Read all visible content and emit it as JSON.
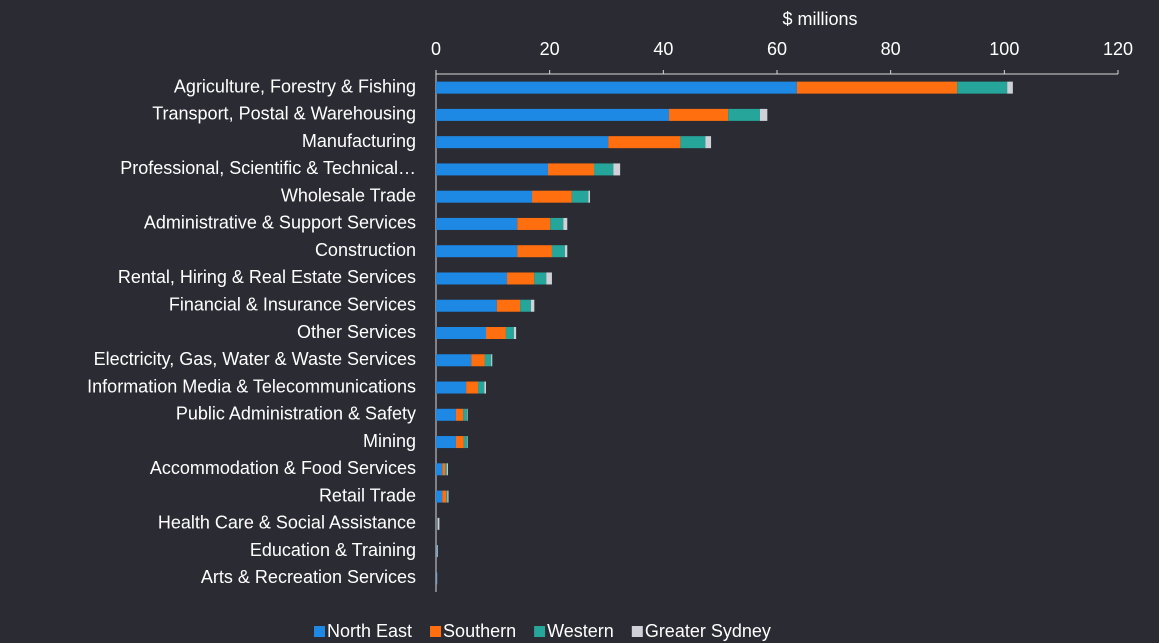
{
  "chart_data": {
    "type": "bar",
    "orientation": "horizontal",
    "stacked": true,
    "x_axis_label": "$ millions",
    "x_axis_position": "top",
    "categories": [
      "Agriculture, Forestry & Fishing",
      "Transport, Postal & Warehousing",
      "Manufacturing",
      "Professional, Scientific & Technical…",
      "Wholesale Trade",
      "Administrative & Support Services",
      "Construction",
      "Rental, Hiring & Real Estate Services",
      "Financial & Insurance Services",
      "Other Services",
      "Electricity, Gas, Water & Waste Services",
      "Information Media & Telecommunications",
      "Public Administration & Safety",
      "Mining",
      "Accommodation & Food Services",
      "Retail Trade",
      "Health Care & Social Assistance",
      "Education & Training",
      "Arts & Recreation Services"
    ],
    "series": [
      {
        "name": "North East",
        "color": "#1e88e5",
        "values": [
          63.5,
          41,
          30.3,
          19.7,
          16.9,
          14.3,
          14.3,
          12.5,
          10.7,
          8.8,
          6.2,
          5.3,
          3.5,
          3.5,
          1.1,
          1.1,
          0.1,
          0.1,
          0.1
        ]
      },
      {
        "name": "Southern",
        "color": "#ff6f10",
        "values": [
          28.2,
          10.4,
          12.7,
          8.1,
          7,
          5.8,
          6.1,
          4.8,
          4.1,
          3.5,
          2.4,
          2.1,
          1.3,
          1.4,
          0.5,
          0.7,
          0.1,
          0,
          0
        ]
      },
      {
        "name": "Western",
        "color": "#26a69a",
        "values": [
          8.8,
          5.6,
          4.4,
          3.4,
          2.9,
          2.3,
          2.3,
          2.1,
          1.9,
          1.4,
          1.1,
          1.1,
          0.7,
          0.6,
          0.3,
          0.2,
          0.1,
          0,
          0
        ]
      },
      {
        "name": "Greater Sydney",
        "color": "#d0d0d8",
        "values": [
          1,
          1.3,
          1,
          1.2,
          0.3,
          0.7,
          0.4,
          1,
          0.6,
          0.4,
          0.2,
          0.3,
          0.1,
          0.1,
          0.2,
          0.2,
          0.3,
          0.2,
          0.1
        ]
      }
    ],
    "xlim": [
      0,
      120
    ],
    "xticks": [
      0,
      20,
      40,
      60,
      80,
      100,
      120
    ],
    "legend": "bottom"
  }
}
